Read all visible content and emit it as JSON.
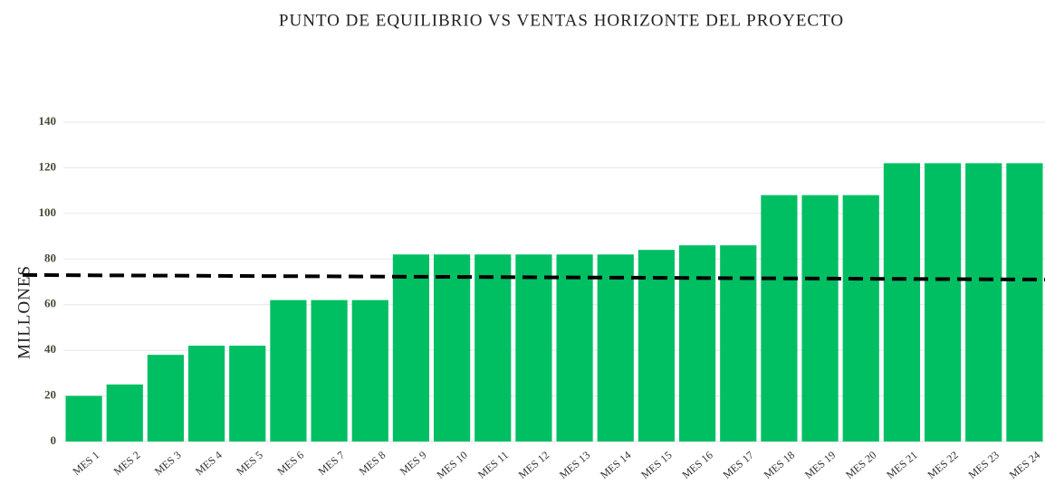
{
  "chart_data": {
    "type": "bar",
    "title": "PUNTO DE EQUILIBRIO  VS VENTAS HORIZONTE DEL PROYECTO",
    "y_label": "MILLONES",
    "categories": [
      "MES 1",
      "MES 2",
      "MES 3",
      "MES 4",
      "MES 5",
      "MES 6",
      "MES 7",
      "MES 8",
      "MES 9",
      "MES 10",
      "MES 11",
      "MES 12",
      "MES 13",
      "MES 14",
      "MES 15",
      "MES 16",
      "MES 17",
      "MES 18",
      "MES 19",
      "MES 20",
      "MES 21",
      "MES 22",
      "MES 23",
      "MES 24"
    ],
    "values": [
      20,
      25,
      38,
      42,
      42,
      62,
      62,
      62,
      82,
      82,
      82,
      82,
      82,
      82,
      84,
      86,
      86,
      108,
      108,
      108,
      122,
      122,
      122,
      122
    ],
    "color": "#00bf63",
    "reference_line": {
      "values": [
        73,
        71
      ],
      "color": "#000000",
      "dashed": true
    },
    "ylim": [
      0,
      140
    ],
    "yticks": [
      0,
      20,
      40,
      60,
      80,
      100,
      120,
      140
    ],
    "grid": true
  }
}
